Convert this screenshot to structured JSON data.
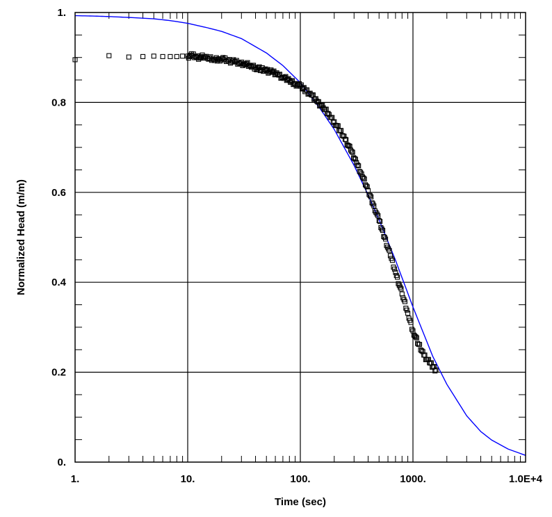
{
  "chart_data": {
    "type": "scatter",
    "title": "",
    "xlabel": "Time (sec)",
    "ylabel": "Normalized Head (m/m)",
    "x_scale": "log",
    "xlim": [
      1,
      10000
    ],
    "ylim": [
      0,
      1
    ],
    "grid": true,
    "legend": "none",
    "x_tick_labels": [
      {
        "value": 1,
        "label": "1."
      },
      {
        "value": 10,
        "label": "10."
      },
      {
        "value": 100,
        "label": "100."
      },
      {
        "value": 1000,
        "label": "1000."
      },
      {
        "value": 10000,
        "label": "1.0E+4"
      }
    ],
    "y_tick_labels": [
      {
        "value": 0,
        "label": "0."
      },
      {
        "value": 0.2,
        "label": "0.2"
      },
      {
        "value": 0.4,
        "label": "0.4"
      },
      {
        "value": 0.6,
        "label": "0.6"
      },
      {
        "value": 0.8,
        "label": "0.8"
      },
      {
        "value": 1,
        "label": "1."
      }
    ],
    "series": [
      {
        "kind": "observed",
        "marker": "open-square",
        "color": "#000000",
        "x": [
          1.0,
          2.0,
          3.0,
          4.0,
          5.0,
          6.0,
          7.0,
          8.0,
          9.0,
          10.0,
          11.0,
          12.0,
          13.0,
          14.0,
          15.0,
          17.0,
          19.0,
          21.0,
          23.0,
          26.0,
          29.0,
          32.0,
          36.0,
          40.0,
          45.0,
          50.0,
          56.0,
          63.0,
          70.0,
          80.0,
          90.0,
          100.0,
          112.0,
          125.0,
          140.0,
          160.0,
          180.0,
          200.0,
          225.0,
          250.0,
          280.0,
          315.0,
          350.0,
          400.0,
          450.0,
          500.0,
          560.0,
          630.0,
          700.0,
          800.0,
          900.0,
          1000.0,
          1120.0,
          1250.0,
          1400.0,
          1600.0
        ],
        "y": [
          0.895,
          0.904,
          0.901,
          0.902,
          0.903,
          0.902,
          0.902,
          0.902,
          0.903,
          0.903,
          0.904,
          0.901,
          0.9,
          0.902,
          0.898,
          0.896,
          0.897,
          0.895,
          0.893,
          0.89,
          0.887,
          0.886,
          0.882,
          0.878,
          0.873,
          0.871,
          0.867,
          0.862,
          0.856,
          0.849,
          0.842,
          0.836,
          0.827,
          0.817,
          0.803,
          0.788,
          0.773,
          0.757,
          0.737,
          0.718,
          0.694,
          0.666,
          0.641,
          0.604,
          0.57,
          0.537,
          0.5,
          0.459,
          0.422,
          0.374,
          0.331,
          0.292,
          0.262,
          0.238,
          0.221,
          0.205
        ]
      },
      {
        "kind": "fitted",
        "color": "#0000ff",
        "x": [
          1,
          1.5,
          2,
          3,
          5,
          7,
          10,
          15,
          20,
          30,
          50,
          70,
          100,
          150,
          200,
          300,
          400,
          500,
          700,
          1000,
          1500,
          2000,
          3000,
          4000,
          5000,
          7000,
          10000
        ],
        "y": [
          0.993,
          0.992,
          0.991,
          0.989,
          0.986,
          0.982,
          0.976,
          0.966,
          0.958,
          0.942,
          0.91,
          0.882,
          0.844,
          0.786,
          0.74,
          0.66,
          0.594,
          0.539,
          0.449,
          0.345,
          0.235,
          0.173,
          0.103,
          0.068,
          0.049,
          0.029,
          0.015
        ]
      }
    ]
  }
}
